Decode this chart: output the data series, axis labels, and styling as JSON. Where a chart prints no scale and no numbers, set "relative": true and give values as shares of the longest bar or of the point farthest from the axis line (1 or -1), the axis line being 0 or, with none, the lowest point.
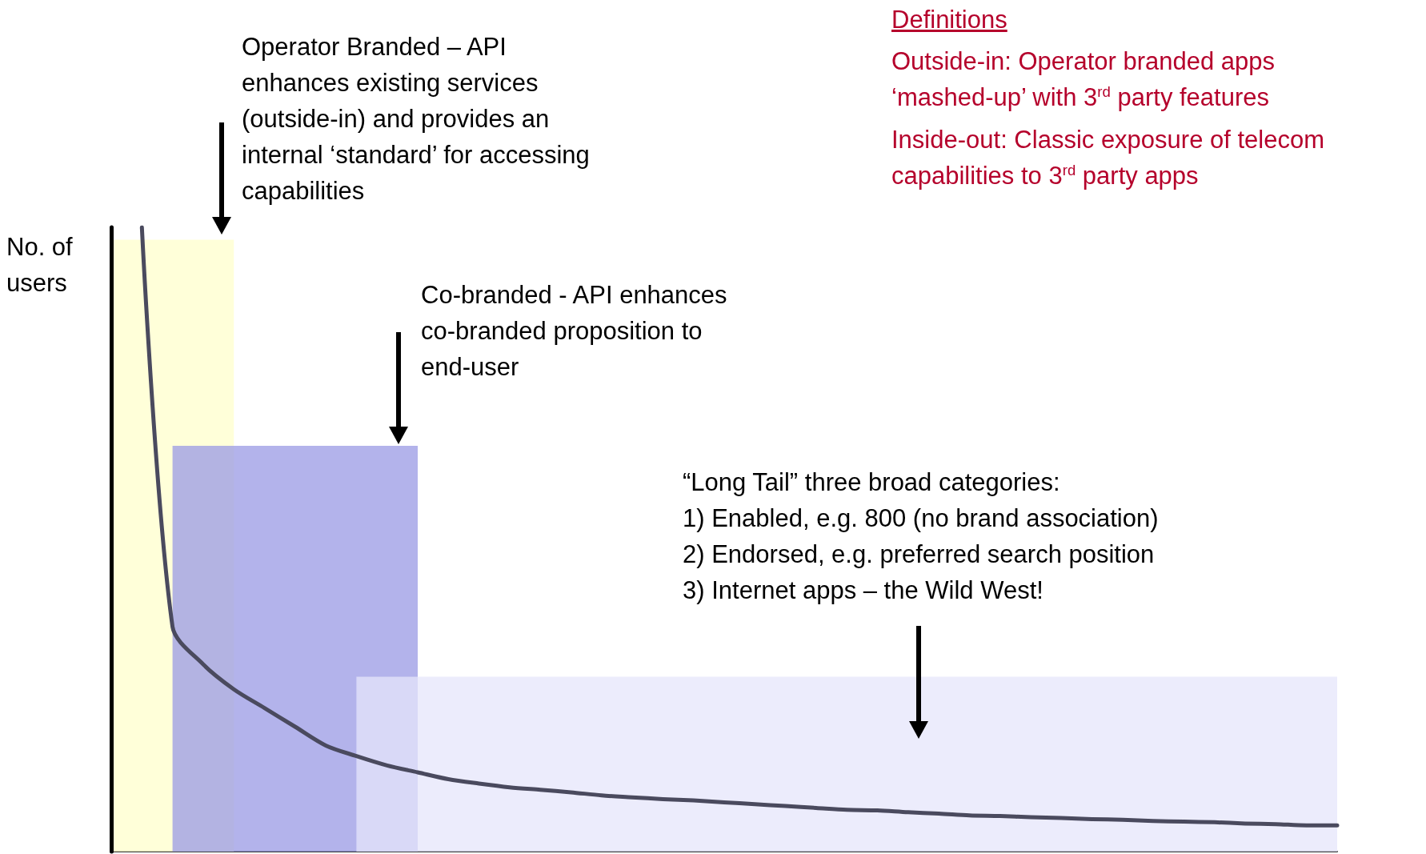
{
  "chart_data": {
    "type": "line",
    "relative": true,
    "ylabel": "No. of users",
    "tick_labels": false,
    "grid": false,
    "marker": "none",
    "line_style": "solid",
    "annotations": [
      "Operator Branded – API enhances existing services (outside-in) and provides an internal ‘standard’ for accessing capabilities",
      "Co-branded - API enhances co-branded proposition to end-user",
      "“Long Tail” three broad categories:\n1) Enabled, e.g. 800 (no brand association)\n2) Endorsed, e.g. preferred search position\n3) Internet apps – the Wild West!",
      "Definitions",
      "Outside-in: Operator branded apps ‘mashed-up’ with 3$^{rd}$ party features",
      "Inside-out: Classic exposure of telecom capabilities to 3$^{rd}$ party apps"
    ],
    "categories": [
      null,
      null,
      null,
      null,
      null,
      null,
      null,
      null,
      null,
      null,
      null,
      null,
      null,
      null,
      null,
      null,
      null,
      null,
      null,
      null,
      null,
      null,
      null,
      null,
      null,
      null,
      null,
      null,
      null,
      null,
      null,
      null,
      null,
      null,
      null,
      null,
      null,
      null,
      null,
      null,
      null
    ],
    "series": [
      {
        "type": "area",
        "color": "#ffffcc",
        "values": [
          0.98,
          0.98,
          0.98,
          0.98,
          0.98,
          null,
          null,
          null,
          null,
          null,
          null,
          null,
          null,
          null,
          null,
          null,
          null,
          null,
          null,
          null,
          null,
          null,
          null,
          null,
          null,
          null,
          null,
          null,
          null,
          null,
          null,
          null,
          null,
          null,
          null,
          null,
          null,
          null,
          null,
          null,
          null
        ]
      },
      {
        "type": "area",
        "color": "#9a9ae4",
        "values": [
          null,
          null,
          0.65,
          0.65,
          0.65,
          0.65,
          0.65,
          0.65,
          0.65,
          0.65,
          0.65,
          null,
          null,
          null,
          null,
          null,
          null,
          null,
          null,
          null,
          null,
          null,
          null,
          null,
          null,
          null,
          null,
          null,
          null,
          null,
          null,
          null,
          null,
          null,
          null,
          null,
          null,
          null,
          null,
          null,
          null
        ]
      },
      {
        "type": "area",
        "color": "#e6e6fb",
        "values": [
          null,
          null,
          null,
          null,
          null,
          null,
          null,
          null,
          0.28,
          0.28,
          0.28,
          0.28,
          0.28,
          0.28,
          0.28,
          0.28,
          0.28,
          0.28,
          0.28,
          0.28,
          0.28,
          0.28,
          0.28,
          0.28,
          0.28,
          0.28,
          0.28,
          0.28,
          0.28,
          0.28,
          0.28,
          0.28,
          0.28,
          0.28,
          0.28,
          0.28,
          0.28,
          0.28,
          0.28,
          0.28,
          0.28
        ]
      },
      {
        "color": "#4a4a5e",
        "values": [
          null,
          1.0,
          0.36,
          0.3,
          0.26,
          0.23,
          0.2,
          0.17,
          0.153,
          0.138,
          0.127,
          0.116,
          0.109,
          0.103,
          0.099,
          0.095,
          0.09,
          0.087,
          0.084,
          0.082,
          0.079,
          0.076,
          0.073,
          0.07,
          0.067,
          0.066,
          0.063,
          0.061,
          0.058,
          0.057,
          0.055,
          0.054,
          0.052,
          0.051,
          0.049,
          0.048,
          0.047,
          0.045,
          0.044,
          0.042,
          0.042
        ]
      }
    ]
  }
}
